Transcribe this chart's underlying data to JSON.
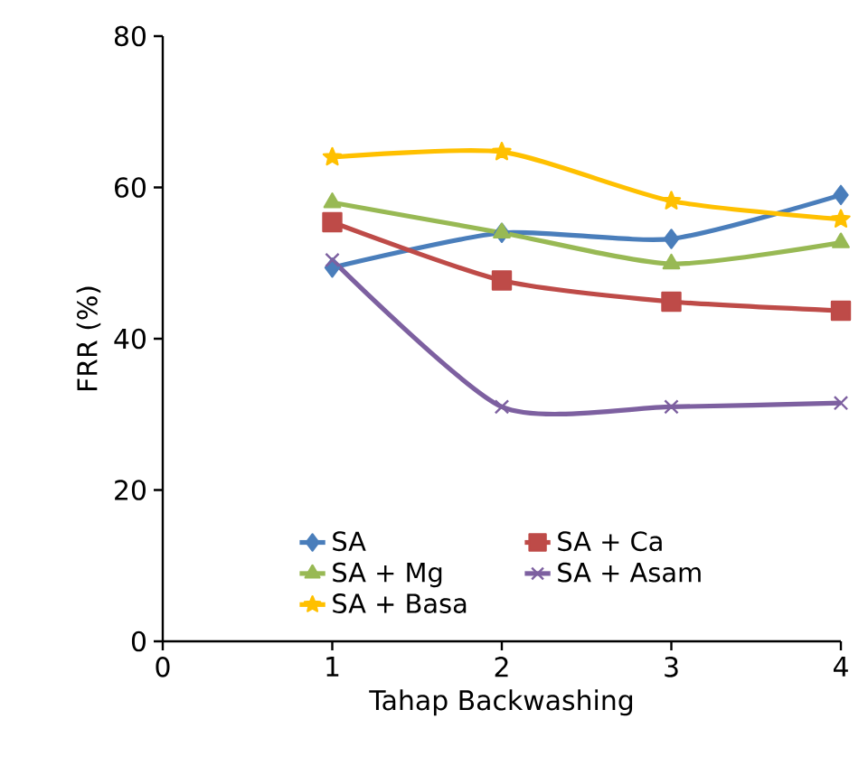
{
  "chart_data": {
    "type": "line",
    "xlabel": "Tahap Backwashing",
    "ylabel": "FRR (%)",
    "x": [
      1,
      2,
      3,
      4
    ],
    "xlim": [
      0,
      4
    ],
    "xticks": [
      0,
      1,
      2,
      3,
      4
    ],
    "ylim": [
      0,
      80
    ],
    "yticks": [
      0,
      20,
      40,
      60,
      80
    ],
    "grid": false,
    "legend": "bottom",
    "line_style": "solid",
    "series": [
      {
        "name": "SA",
        "color": "#4a7ebb",
        "marker": "diamond",
        "values": [
          49.4,
          54,
          53.2,
          59
        ]
      },
      {
        "name": "SA + Ca",
        "color": "#be4b48",
        "marker": "square",
        "values": [
          55.4,
          47.7,
          44.9,
          43.7
        ]
      },
      {
        "name": "SA + Mg",
        "color": "#98b954",
        "marker": "triangle",
        "values": [
          58,
          54,
          49.9,
          52.7
        ]
      },
      {
        "name": "SA + Asam",
        "color": "#7d60a0",
        "marker": "cross",
        "values": [
          50.4,
          31,
          31,
          31.5
        ]
      },
      {
        "name": "SA + Basa",
        "color": "#ffc000",
        "marker": "star",
        "values": [
          64,
          64.7,
          58.2,
          55.8
        ]
      }
    ]
  }
}
